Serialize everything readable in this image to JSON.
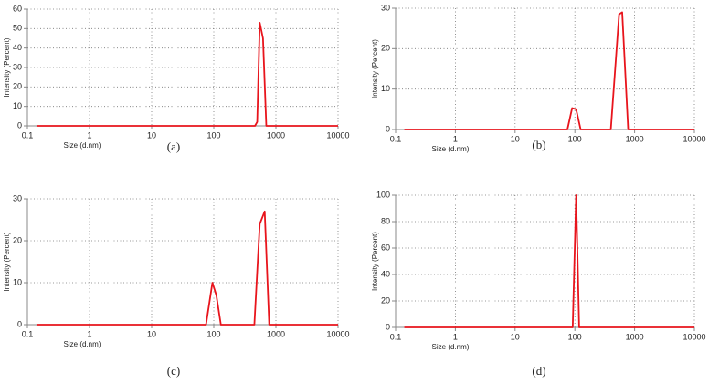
{
  "chart_data": [
    {
      "type": "line",
      "caption": "(a)",
      "xlabel": "Size (d.nm)",
      "ylabel": "Intensity (Percent)",
      "log_x": true,
      "grid": true,
      "color": "#e8141c",
      "xlim": [
        0.1,
        10000
      ],
      "xticks": [
        0.1,
        1,
        10,
        100,
        1000,
        10000
      ],
      "ylim": [
        0,
        60
      ],
      "yticks": [
        0,
        10,
        20,
        30,
        40,
        50,
        60
      ],
      "x": [
        0.14,
        460,
        500,
        550,
        620,
        700,
        10000
      ],
      "values": [
        0,
        0,
        2,
        53,
        45,
        0,
        0
      ]
    },
    {
      "type": "line",
      "caption": "(b)",
      "xlabel": "Size (d.nm)",
      "ylabel": "Intensity (Percent)",
      "log_x": true,
      "grid": true,
      "color": "#e8141c",
      "xlim": [
        0.1,
        10000
      ],
      "xticks": [
        0.1,
        1,
        10,
        100,
        1000,
        10000
      ],
      "ylim": [
        0,
        30
      ],
      "yticks": [
        0,
        10,
        20,
        30
      ],
      "x": [
        0.14,
        75,
        90,
        105,
        125,
        400,
        550,
        620,
        780,
        10000
      ],
      "values": [
        0,
        0,
        5.3,
        5,
        0,
        0,
        28.5,
        29,
        0,
        0
      ]
    },
    {
      "type": "line",
      "caption": "(c)",
      "xlabel": "Size (d.nm)",
      "ylabel": "Intensity (Percent)",
      "log_x": true,
      "grid": true,
      "color": "#e8141c",
      "xlim": [
        0.1,
        10000
      ],
      "xticks": [
        0.1,
        1,
        10,
        100,
        1000,
        10000
      ],
      "ylim": [
        0,
        30
      ],
      "yticks": [
        0,
        10,
        20,
        30
      ],
      "x": [
        0.14,
        75,
        95,
        110,
        130,
        450,
        550,
        660,
        780,
        10000
      ],
      "values": [
        0,
        0,
        10,
        7,
        0,
        0,
        24,
        27,
        0,
        0
      ]
    },
    {
      "type": "line",
      "caption": "(d)",
      "xlabel": "Size (d.nm)",
      "ylabel": "Intensity (Percent)",
      "log_x": true,
      "grid": true,
      "color": "#e8141c",
      "xlim": [
        0.1,
        10000
      ],
      "xticks": [
        0.1,
        1,
        10,
        100,
        1000,
        10000
      ],
      "ylim": [
        0,
        100
      ],
      "yticks": [
        0,
        20,
        40,
        60,
        80,
        100
      ],
      "x": [
        0.14,
        92,
        105,
        118,
        10000
      ],
      "values": [
        0,
        0,
        100,
        0,
        0
      ]
    }
  ]
}
